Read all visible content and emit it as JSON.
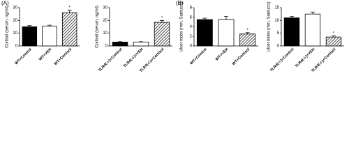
{
  "panel_labels": [
    "(A)",
    "(B)"
  ],
  "chart_data": [
    {
      "type": "bar",
      "ylabel": "Cortisol (serum, ng/ml)",
      "categories": [
        "WT+Control",
        "WT+VEH",
        "WT+Cortisol"
      ],
      "values": [
        15,
        15.5,
        26
      ],
      "errors": [
        1,
        0.8,
        2
      ],
      "markers": [
        null,
        null,
        "*"
      ],
      "bar_fills": [
        "#000000",
        "#ffffff",
        "hatch"
      ],
      "ylim": [
        0,
        30
      ],
      "yticks": [
        0,
        10,
        20,
        30
      ]
    },
    {
      "type": "bar",
      "ylabel": "Cortisol (serum, ng/ml)",
      "categories": [
        "TLR4(-/-)+Control",
        "TLR4(-/-)+VEH",
        "TLR4(-/-)+Cortisol"
      ],
      "values": [
        3,
        3,
        18.5
      ],
      "errors": [
        0.3,
        0.3,
        1.5
      ],
      "markers": [
        null,
        null,
        "*"
      ],
      "bar_fills": [
        "#000000",
        "#ffffff",
        "hatch"
      ],
      "ylim": [
        0,
        30
      ],
      "yticks": [
        0,
        10,
        20,
        30
      ]
    },
    {
      "type": "bar",
      "ylabel": "Ulcer index (mm, Santucci)",
      "categories": [
        "WT+Control",
        "WT+VEH",
        "WT+Cortisol"
      ],
      "values": [
        5.5,
        5.5,
        2.5
      ],
      "errors": [
        0.3,
        0.7,
        0.3
      ],
      "markers": [
        null,
        null,
        "*"
      ],
      "bar_fills": [
        "#000000",
        "#ffffff",
        "hatch"
      ],
      "ylim": [
        0,
        8
      ],
      "yticks": [
        0,
        2,
        4,
        6,
        8
      ]
    },
    {
      "type": "bar",
      "ylabel": "Ulcer index (mm, Santucci)",
      "categories": [
        "TLR4(-/-)+Control",
        "TLR4(-/-)+VEH",
        "TLR4(-/-)+Cortisol"
      ],
      "values": [
        11,
        12.5,
        3.5
      ],
      "errors": [
        0.6,
        0.8,
        0.4
      ],
      "markers": [
        null,
        null,
        "*"
      ],
      "bar_fills": [
        "#000000",
        "#ffffff",
        "hatch"
      ],
      "ylim": [
        0,
        15
      ],
      "yticks": [
        0,
        5,
        10,
        15
      ]
    }
  ]
}
